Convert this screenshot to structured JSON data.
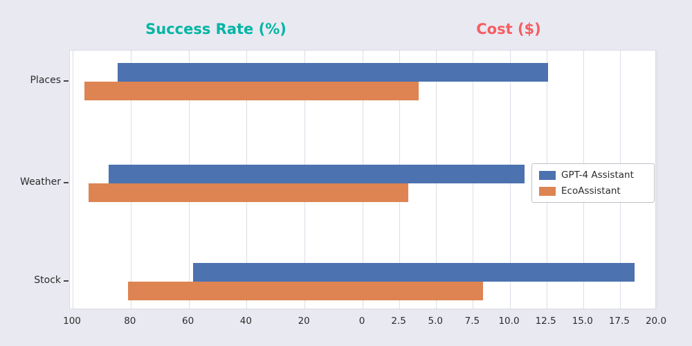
{
  "figure": {
    "background": "#e9e9f2",
    "plot_background": "#ffffff",
    "grid_color": "#dcdce8"
  },
  "chart_data": {
    "type": "bar",
    "layout": "diverging-horizontal-two-panels",
    "grid": true,
    "legend_position": "middle-right",
    "categories": [
      "Places",
      "Weather",
      "Stock"
    ],
    "left_panel": {
      "title": "Success Rate (%)",
      "title_color": "#00b5a3",
      "axis_max": 100,
      "axis_reversed": true,
      "ticks": [
        100,
        80,
        60,
        40,
        20,
        0
      ],
      "tick_labels": [
        "100",
        "80",
        "60",
        "40",
        "20",
        "0"
      ],
      "series": [
        {
          "name": "GPT-4 Assistant",
          "color": "#4c72b0",
          "values": [
            84.5,
            87.5,
            58.5
          ]
        },
        {
          "name": "EcoAssistant",
          "color": "#dd8452",
          "values": [
            96.0,
            94.5,
            81.0
          ]
        }
      ]
    },
    "right_panel": {
      "title": "Cost ($)",
      "title_color": "#f65d61",
      "axis_max": 20,
      "ticks": [
        2.5,
        5.0,
        7.5,
        10.0,
        12.5,
        15.0,
        17.5,
        20.0
      ],
      "tick_labels": [
        "2.5",
        "5.0",
        "7.5",
        "10.0",
        "12.5",
        "15.0",
        "17.5",
        "20.0"
      ],
      "series": [
        {
          "name": "GPT-4 Assistant",
          "color": "#4c72b0",
          "values": [
            12.6,
            11.0,
            18.5
          ]
        },
        {
          "name": "EcoAssistant",
          "color": "#dd8452",
          "values": [
            3.8,
            3.1,
            8.2
          ]
        }
      ]
    },
    "legend": [
      "GPT-4 Assistant",
      "EcoAssistant"
    ]
  }
}
